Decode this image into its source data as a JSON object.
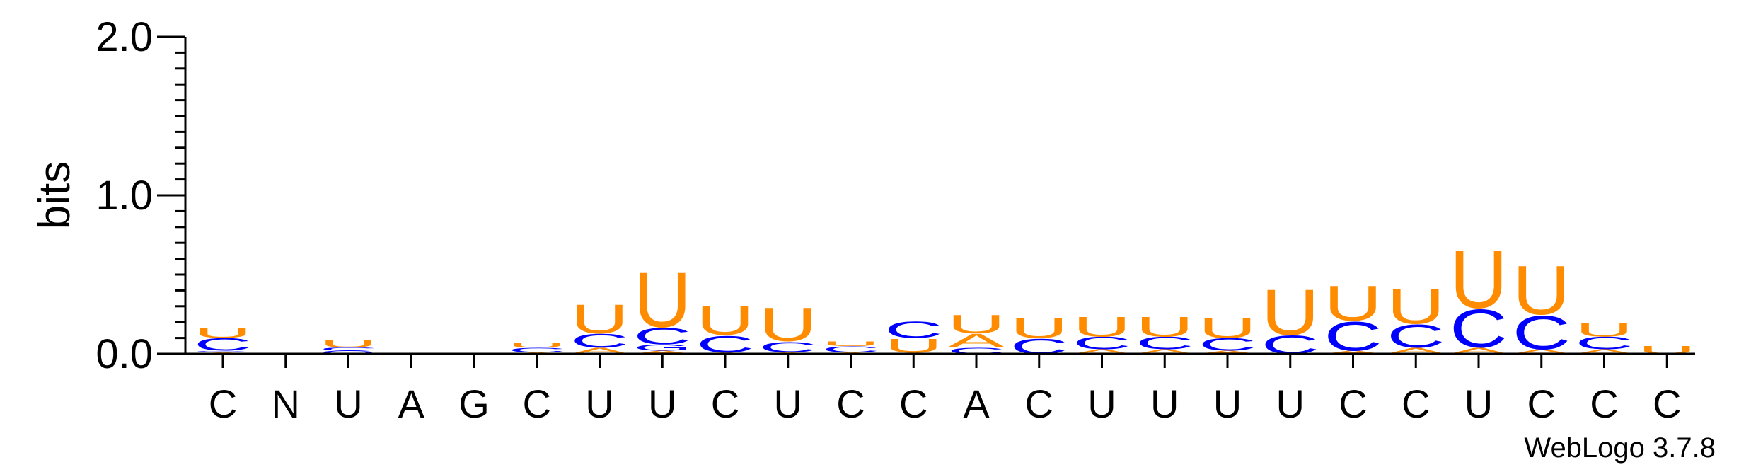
{
  "chart_data": {
    "type": "sequence-logo",
    "ylabel": "bits",
    "ylim": [
      0,
      2.0
    ],
    "yticks": [
      {
        "value": 0.0,
        "label": "0.0"
      },
      {
        "value": 1.0,
        "label": "1.0"
      },
      {
        "value": 2.0,
        "label": "2.0"
      }
    ],
    "categories": [
      "C",
      "N",
      "U",
      "A",
      "G",
      "C",
      "U",
      "U",
      "C",
      "U",
      "C",
      "C",
      "A",
      "C",
      "U",
      "U",
      "U",
      "U",
      "C",
      "C",
      "U",
      "C",
      "C",
      "C"
    ],
    "colors": {
      "U": "#FF8C00",
      "C": "#0000FF",
      "A": "#FF8C00",
      "G": "#0000FF"
    },
    "stacks": [
      [
        {
          "base": "A",
          "bits": 0.01
        },
        {
          "base": "G",
          "bits": 0.01
        },
        {
          "base": "C",
          "bits": 0.08
        },
        {
          "base": "U",
          "bits": 0.07
        }
      ],
      [],
      [
        {
          "base": "G",
          "bits": 0.02
        },
        {
          "base": "C",
          "bits": 0.02
        },
        {
          "base": "U",
          "bits": 0.05
        }
      ],
      [],
      [],
      [
        {
          "base": "A",
          "bits": 0.01
        },
        {
          "base": "C",
          "bits": 0.03
        },
        {
          "base": "U",
          "bits": 0.03
        }
      ],
      [
        {
          "base": "A",
          "bits": 0.04
        },
        {
          "base": "C",
          "bits": 0.09
        },
        {
          "base": "U",
          "bits": 0.19
        }
      ],
      [
        {
          "base": "A",
          "bits": 0.02
        },
        {
          "base": "G",
          "bits": 0.04
        },
        {
          "base": "C",
          "bits": 0.11
        },
        {
          "base": "U",
          "bits": 0.36
        }
      ],
      [
        {
          "base": "A",
          "bits": 0.01
        },
        {
          "base": "C",
          "bits": 0.11
        },
        {
          "base": "U",
          "bits": 0.19
        }
      ],
      [
        {
          "base": "A",
          "bits": 0.01
        },
        {
          "base": "C",
          "bits": 0.07
        },
        {
          "base": "U",
          "bits": 0.22
        }
      ],
      [
        {
          "base": "A",
          "bits": 0.01
        },
        {
          "base": "C",
          "bits": 0.04
        },
        {
          "base": "U",
          "bits": 0.03
        }
      ],
      [
        {
          "base": "A",
          "bits": 0.01
        },
        {
          "base": "U",
          "bits": 0.09
        },
        {
          "base": "C",
          "bits": 0.11
        }
      ],
      [
        {
          "base": "C",
          "bits": 0.04
        },
        {
          "base": "A",
          "bits": 0.09
        },
        {
          "base": "U",
          "bits": 0.12
        }
      ],
      [
        {
          "base": "C",
          "bits": 0.1
        },
        {
          "base": "U",
          "bits": 0.13
        }
      ],
      [
        {
          "base": "A",
          "bits": 0.03
        },
        {
          "base": "C",
          "bits": 0.08
        },
        {
          "base": "U",
          "bits": 0.13
        }
      ],
      [
        {
          "base": "A",
          "bits": 0.03
        },
        {
          "base": "C",
          "bits": 0.08
        },
        {
          "base": "U",
          "bits": 0.13
        }
      ],
      [
        {
          "base": "A",
          "bits": 0.02
        },
        {
          "base": "C",
          "bits": 0.08
        },
        {
          "base": "U",
          "bits": 0.13
        }
      ],
      [
        {
          "base": "C",
          "bits": 0.12
        },
        {
          "base": "U",
          "bits": 0.3
        }
      ],
      [
        {
          "base": "A",
          "bits": 0.02
        },
        {
          "base": "C",
          "bits": 0.19
        },
        {
          "base": "U",
          "bits": 0.23
        }
      ],
      [
        {
          "base": "A",
          "bits": 0.04
        },
        {
          "base": "C",
          "bits": 0.15
        },
        {
          "base": "U",
          "bits": 0.23
        }
      ],
      [
        {
          "base": "A",
          "bits": 0.04
        },
        {
          "base": "C",
          "bits": 0.25
        },
        {
          "base": "U",
          "bits": 0.38
        }
      ],
      [
        {
          "base": "A",
          "bits": 0.03
        },
        {
          "base": "C",
          "bits": 0.22
        },
        {
          "base": "U",
          "bits": 0.32
        }
      ],
      [
        {
          "base": "A",
          "bits": 0.03
        },
        {
          "base": "C",
          "bits": 0.08
        },
        {
          "base": "U",
          "bits": 0.09
        }
      ],
      [
        {
          "base": "U",
          "bits": 0.05
        }
      ]
    ]
  },
  "credit": "WebLogo 3.7.8"
}
